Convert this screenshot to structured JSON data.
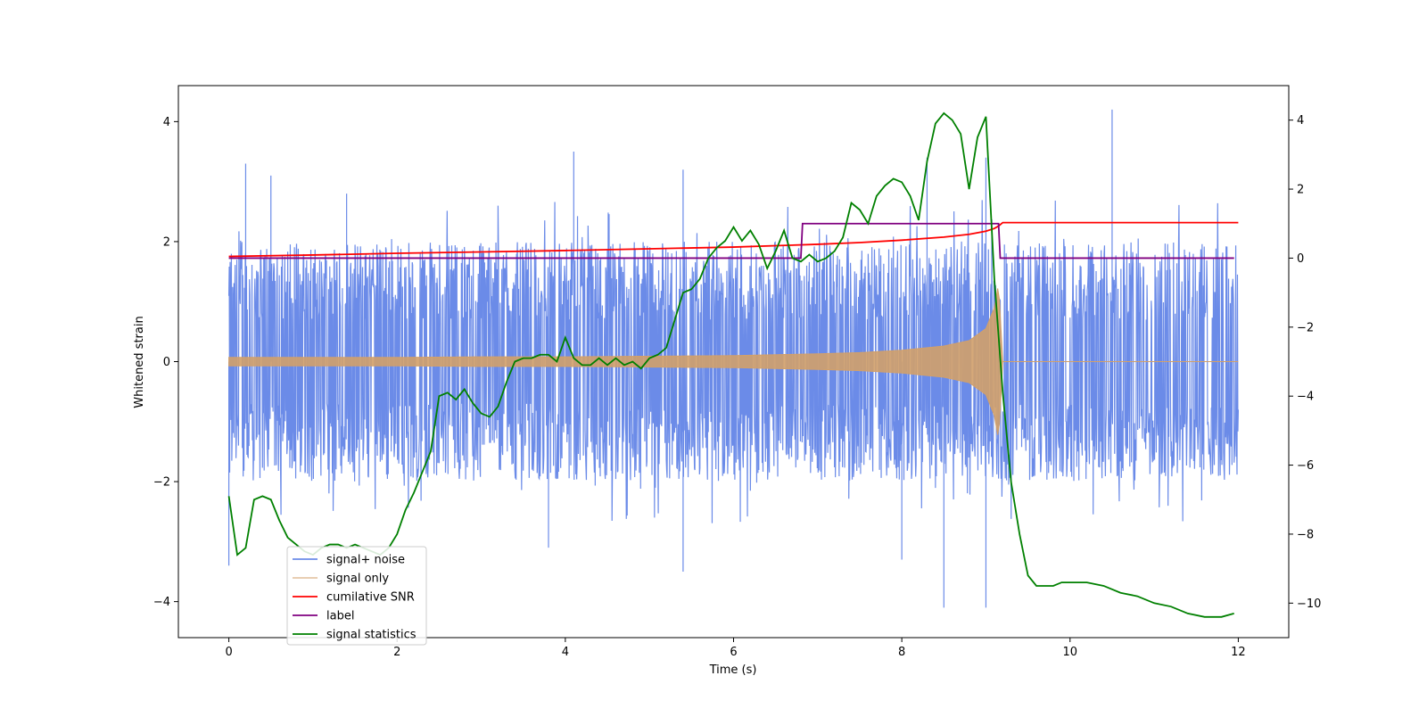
{
  "chart_data": {
    "type": "line",
    "title": "",
    "xlabel": "Time (s)",
    "ylabel": "Whitened strain",
    "y2label": "",
    "xlim": [
      -0.6,
      12.6
    ],
    "ylim": [
      -4.6,
      4.6
    ],
    "y2lim": [
      -11.0,
      5.0
    ],
    "x_ticks": [
      0,
      2,
      4,
      6,
      8,
      10,
      12
    ],
    "x_tick_labels": [
      "0",
      "2",
      "4",
      "6",
      "8",
      "10",
      "12"
    ],
    "y_ticks": [
      4,
      2,
      0,
      -2,
      -4
    ],
    "y_tick_labels": [
      "4",
      "2",
      "0",
      "−2",
      "−4"
    ],
    "y2_ticks": [
      4,
      2,
      0,
      -2,
      -4,
      -6,
      -8,
      -10
    ],
    "y2_tick_labels": [
      "4",
      "2",
      "0",
      "−2",
      "−4",
      "−6",
      "−8",
      "−10"
    ],
    "grid": false,
    "legend_position": "lower-left",
    "colors": {
      "signal_noise": "#6b8be8",
      "signal_only": "#d2a06a",
      "cumulative_snr": "#ff0000",
      "label": "#800080",
      "signal_statistics": "#008000"
    },
    "series": [
      {
        "name": "signal+ noise",
        "axis": "left",
        "kind": "noisy band",
        "x_range": [
          0,
          12
        ],
        "typical_envelope": [
          -2.0,
          2.0
        ],
        "peaks": [
          {
            "x": 0.2,
            "y": 3.3
          },
          {
            "x": 0.5,
            "y": 3.1
          },
          {
            "x": 1.4,
            "y": 2.8
          },
          {
            "x": 4.1,
            "y": 3.5
          },
          {
            "x": 5.4,
            "y": 3.2
          },
          {
            "x": 5.4,
            "y": -3.5
          },
          {
            "x": 8.3,
            "y": 3.4
          },
          {
            "x": 8.5,
            "y": -4.1
          },
          {
            "x": 9.0,
            "y": -4.1
          },
          {
            "x": 9.0,
            "y": 3.4
          },
          {
            "x": 10.5,
            "y": 4.2
          },
          {
            "x": 0.0,
            "y": -3.4
          },
          {
            "x": 3.8,
            "y": -3.1
          },
          {
            "x": 8.0,
            "y": -3.3
          }
        ]
      },
      {
        "name": "signal only",
        "axis": "left",
        "kind": "chirp",
        "x": [
          0,
          1,
          2,
          3,
          4,
          5,
          6,
          7,
          7.5,
          8,
          8.5,
          8.8,
          9.0,
          9.1,
          9.15,
          9.2,
          10,
          11,
          12
        ],
        "amplitude": [
          0.07,
          0.07,
          0.07,
          0.08,
          0.08,
          0.09,
          0.1,
          0.13,
          0.15,
          0.19,
          0.26,
          0.35,
          0.55,
          0.9,
          1.3,
          0.0,
          0.0,
          0.0,
          0.0
        ]
      },
      {
        "name": "cumilative SNR",
        "axis": "right",
        "x": [
          0,
          1,
          2,
          3,
          4,
          5,
          6,
          6.5,
          7,
          7.5,
          8,
          8.5,
          8.8,
          9.0,
          9.1,
          9.15,
          9.2,
          10,
          11,
          12
        ],
        "values": [
          0.05,
          0.09,
          0.14,
          0.18,
          0.22,
          0.27,
          0.32,
          0.36,
          0.4,
          0.45,
          0.52,
          0.61,
          0.69,
          0.78,
          0.86,
          0.93,
          1.03,
          1.03,
          1.03,
          1.03
        ]
      },
      {
        "name": "label",
        "axis": "right",
        "x": [
          0,
          6.8,
          6.82,
          9.15,
          9.17,
          11.95
        ],
        "values": [
          0,
          0,
          1,
          1,
          0,
          0
        ]
      },
      {
        "name": "signal statistics",
        "axis": "right",
        "x": [
          0,
          0.1,
          0.2,
          0.3,
          0.4,
          0.5,
          0.6,
          0.7,
          0.8,
          0.9,
          1.0,
          1.1,
          1.2,
          1.3,
          1.4,
          1.5,
          1.6,
          1.7,
          1.8,
          1.9,
          2.0,
          2.1,
          2.2,
          2.3,
          2.4,
          2.5,
          2.6,
          2.7,
          2.8,
          2.9,
          3.0,
          3.1,
          3.2,
          3.3,
          3.4,
          3.5,
          3.6,
          3.7,
          3.8,
          3.9,
          4.0,
          4.1,
          4.2,
          4.3,
          4.4,
          4.5,
          4.6,
          4.7,
          4.8,
          4.9,
          5.0,
          5.1,
          5.2,
          5.3,
          5.4,
          5.5,
          5.6,
          5.7,
          5.8,
          5.9,
          6.0,
          6.1,
          6.2,
          6.3,
          6.4,
          6.5,
          6.6,
          6.7,
          6.8,
          6.9,
          7.0,
          7.1,
          7.2,
          7.3,
          7.4,
          7.5,
          7.6,
          7.7,
          7.8,
          7.9,
          8.0,
          8.1,
          8.2,
          8.3,
          8.4,
          8.5,
          8.6,
          8.7,
          8.8,
          8.9,
          9.0,
          9.1,
          9.2,
          9.3,
          9.4,
          9.5,
          9.6,
          9.7,
          9.8,
          9.9,
          10.0,
          10.2,
          10.4,
          10.6,
          10.8,
          11.0,
          11.2,
          11.4,
          11.6,
          11.8,
          11.95
        ],
        "values": [
          -6.9,
          -8.6,
          -8.4,
          -7.0,
          -6.9,
          -7.0,
          -7.6,
          -8.1,
          -8.3,
          -8.5,
          -8.6,
          -8.4,
          -8.3,
          -8.3,
          -8.4,
          -8.3,
          -8.4,
          -8.5,
          -8.6,
          -8.4,
          -8.0,
          -7.3,
          -6.8,
          -6.2,
          -5.6,
          -4.0,
          -3.9,
          -4.1,
          -3.8,
          -4.2,
          -4.5,
          -4.6,
          -4.3,
          -3.6,
          -3.0,
          -2.9,
          -2.9,
          -2.8,
          -2.8,
          -3.0,
          -2.3,
          -2.9,
          -3.1,
          -3.1,
          -2.9,
          -3.1,
          -2.9,
          -3.1,
          -3.0,
          -3.2,
          -2.9,
          -2.8,
          -2.6,
          -1.8,
          -1.0,
          -0.9,
          -0.6,
          0.0,
          0.3,
          0.5,
          0.9,
          0.5,
          0.8,
          0.4,
          -0.3,
          0.2,
          0.8,
          0.0,
          -0.1,
          0.1,
          -0.1,
          0.0,
          0.2,
          0.6,
          1.6,
          1.4,
          1.0,
          1.8,
          2.1,
          2.3,
          2.2,
          1.8,
          1.1,
          2.8,
          3.9,
          4.2,
          4.0,
          3.6,
          2.0,
          3.5,
          4.1,
          -0.6,
          -3.9,
          -6.5,
          -8.0,
          -9.2,
          -9.5,
          -9.5,
          -9.5,
          -9.4,
          -9.4,
          -9.4,
          -9.5,
          -9.7,
          -9.8,
          -10.0,
          -10.1,
          -10.3,
          -10.4,
          -10.4,
          -10.3
        ]
      }
    ]
  }
}
